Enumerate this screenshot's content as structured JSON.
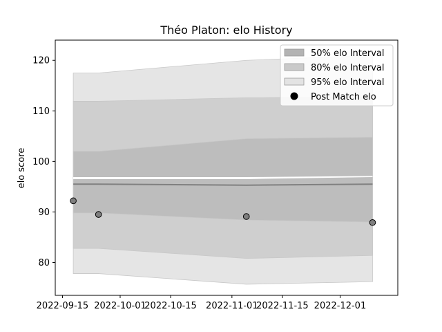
{
  "chart_data": {
    "type": "area",
    "title": "Théo Platon: elo History",
    "xlabel": "",
    "ylabel": "elo score",
    "xlim": [
      "2022-09-13",
      "2022-12-17"
    ],
    "ylim": [
      73.5,
      124
    ],
    "xticks": [
      "2022-09-15",
      "2022-10-01",
      "2022-10-15",
      "2022-11-01",
      "2022-11-15",
      "2022-12-01"
    ],
    "yticks": [
      80,
      90,
      100,
      110,
      120
    ],
    "x": [
      "2022-09-18",
      "2022-09-25",
      "2022-11-05",
      "2022-12-10"
    ],
    "mean": [
      95.5,
      95.5,
      95.3,
      95.5
    ],
    "bands": [
      {
        "name": "95% elo Interval",
        "color": "#e5e5e5",
        "lower": [
          77.8,
          77.8,
          75.7,
          76.2
        ],
        "upper": [
          117.5,
          117.5,
          120.0,
          121.0
        ]
      },
      {
        "name": "80% elo Interval",
        "color": "#cfcfcf",
        "lower": [
          82.8,
          82.8,
          80.8,
          81.4
        ],
        "upper": [
          111.9,
          111.9,
          112.6,
          112.8
        ]
      },
      {
        "name": "50% elo Interval",
        "color": "#bdbdbd",
        "lower": [
          89.8,
          89.8,
          88.4,
          88.0
        ],
        "upper": [
          102.0,
          102.0,
          104.5,
          104.8
        ]
      }
    ],
    "gap": {
      "lower": [
        96.5,
        96.5,
        96.5,
        96.9
      ],
      "upper": [
        96.9,
        96.9,
        96.9,
        97.1
      ]
    },
    "series": [
      {
        "name": "Post Match elo",
        "x": [
          "2022-09-18",
          "2022-09-25",
          "2022-11-05",
          "2022-12-10"
        ],
        "values": [
          92.2,
          89.5,
          89.1,
          87.9
        ],
        "color": "#7f7f7f"
      }
    ],
    "legend": {
      "position": "upper-right",
      "entries": [
        {
          "label": "50% elo Interval",
          "kind": "patch",
          "color": "#b3b3b3"
        },
        {
          "label": "80% elo Interval",
          "kind": "patch",
          "color": "#c9c9c9"
        },
        {
          "label": "95% elo Interval",
          "kind": "patch",
          "color": "#e3e3e3"
        },
        {
          "label": "Post Match elo",
          "kind": "marker",
          "color": "#000000"
        }
      ]
    },
    "grid": false
  }
}
